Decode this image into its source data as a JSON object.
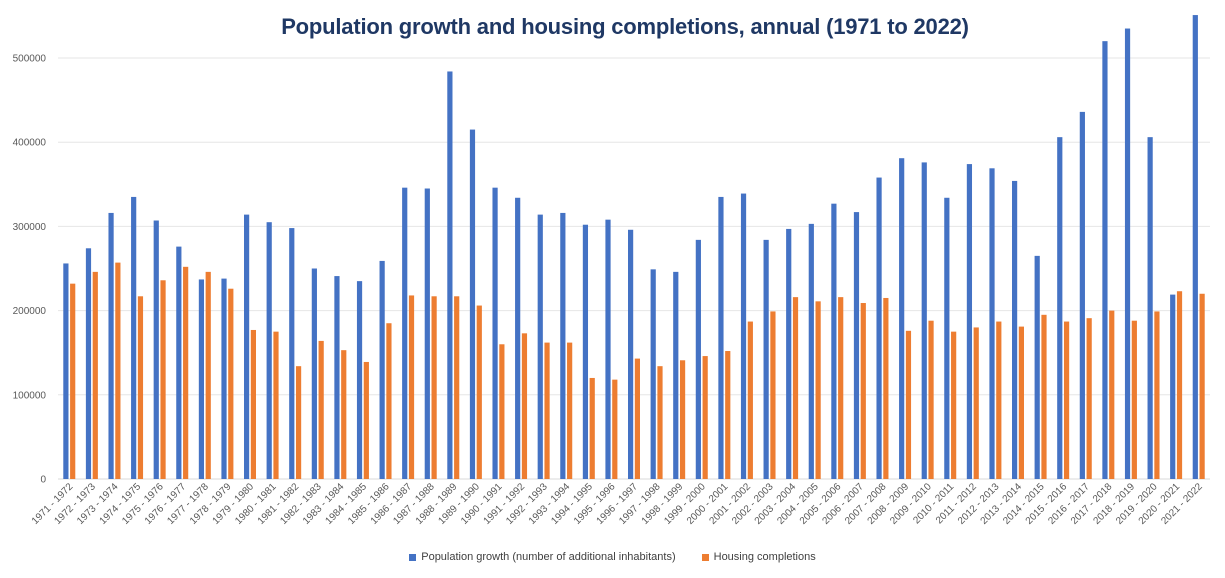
{
  "chart_data": {
    "type": "bar",
    "title": "Population growth and housing completions, annual (1971 to 2022)",
    "xlabel": "",
    "ylabel": "",
    "ylim": [
      0,
      550000
    ],
    "yticks": [
      0,
      100000,
      200000,
      300000,
      400000,
      500000
    ],
    "ytick_labels": [
      "0",
      "100000",
      "200000",
      "300000",
      "400000",
      "500000"
    ],
    "grid": true,
    "legend_position": "bottom",
    "categories": [
      "1971 - 1972",
      "1972 - 1973",
      "1973 - 1974",
      "1974 - 1975",
      "1975 - 1976",
      "1976 - 1977",
      "1977 - 1978",
      "1978 - 1979",
      "1979 - 1980",
      "1980 - 1981",
      "1981 - 1982",
      "1982 - 1983",
      "1983 - 1984",
      "1984 - 1985",
      "1985 - 1986",
      "1986 - 1987",
      "1987 - 1988",
      "1988 - 1989",
      "1989 - 1990",
      "1990 - 1991",
      "1991 - 1992",
      "1992 - 1993",
      "1993 - 1994",
      "1994 - 1995",
      "1995 - 1996",
      "1996 - 1997",
      "1997 - 1998",
      "1998 - 1999",
      "1999 - 2000",
      "2000 - 2001",
      "2001 - 2002",
      "2002 - 2003",
      "2003 - 2004",
      "2004 - 2005",
      "2005 - 2006",
      "2006 - 2007",
      "2007 - 2008",
      "2008 - 2009",
      "2009 - 2010",
      "2010 - 2011",
      "2011 - 2012",
      "2012 - 2013",
      "2013 - 2014",
      "2014 - 2015",
      "2015 - 2016",
      "2016 - 2017",
      "2017 - 2018",
      "2018 - 2019",
      "2019 - 2020",
      "2020 - 2021",
      "2021 - 2022"
    ],
    "series": [
      {
        "name": "Population growth (number of additional inhabitants)",
        "color": "#4472c4",
        "values": [
          256000,
          274000,
          316000,
          335000,
          307000,
          276000,
          237000,
          238000,
          314000,
          305000,
          298000,
          250000,
          241000,
          235000,
          259000,
          346000,
          345000,
          484000,
          415000,
          346000,
          334000,
          314000,
          316000,
          302000,
          308000,
          296000,
          249000,
          246000,
          284000,
          335000,
          339000,
          284000,
          297000,
          303000,
          327000,
          317000,
          358000,
          381000,
          376000,
          334000,
          374000,
          369000,
          354000,
          265000,
          406000,
          436000,
          520000,
          535000,
          406000,
          219000,
          551000
        ]
      },
      {
        "name": "Housing completions",
        "color": "#ed7d31",
        "values": [
          232000,
          246000,
          257000,
          217000,
          236000,
          252000,
          246000,
          226000,
          177000,
          175000,
          134000,
          164000,
          153000,
          139000,
          185000,
          218000,
          217000,
          217000,
          206000,
          160000,
          173000,
          162000,
          162000,
          120000,
          118000,
          143000,
          134000,
          141000,
          146000,
          152000,
          187000,
          199000,
          216000,
          211000,
          216000,
          209000,
          215000,
          176000,
          188000,
          175000,
          180000,
          187000,
          181000,
          195000,
          187000,
          191000,
          200000,
          188000,
          199000,
          223000,
          220000
        ]
      }
    ]
  }
}
